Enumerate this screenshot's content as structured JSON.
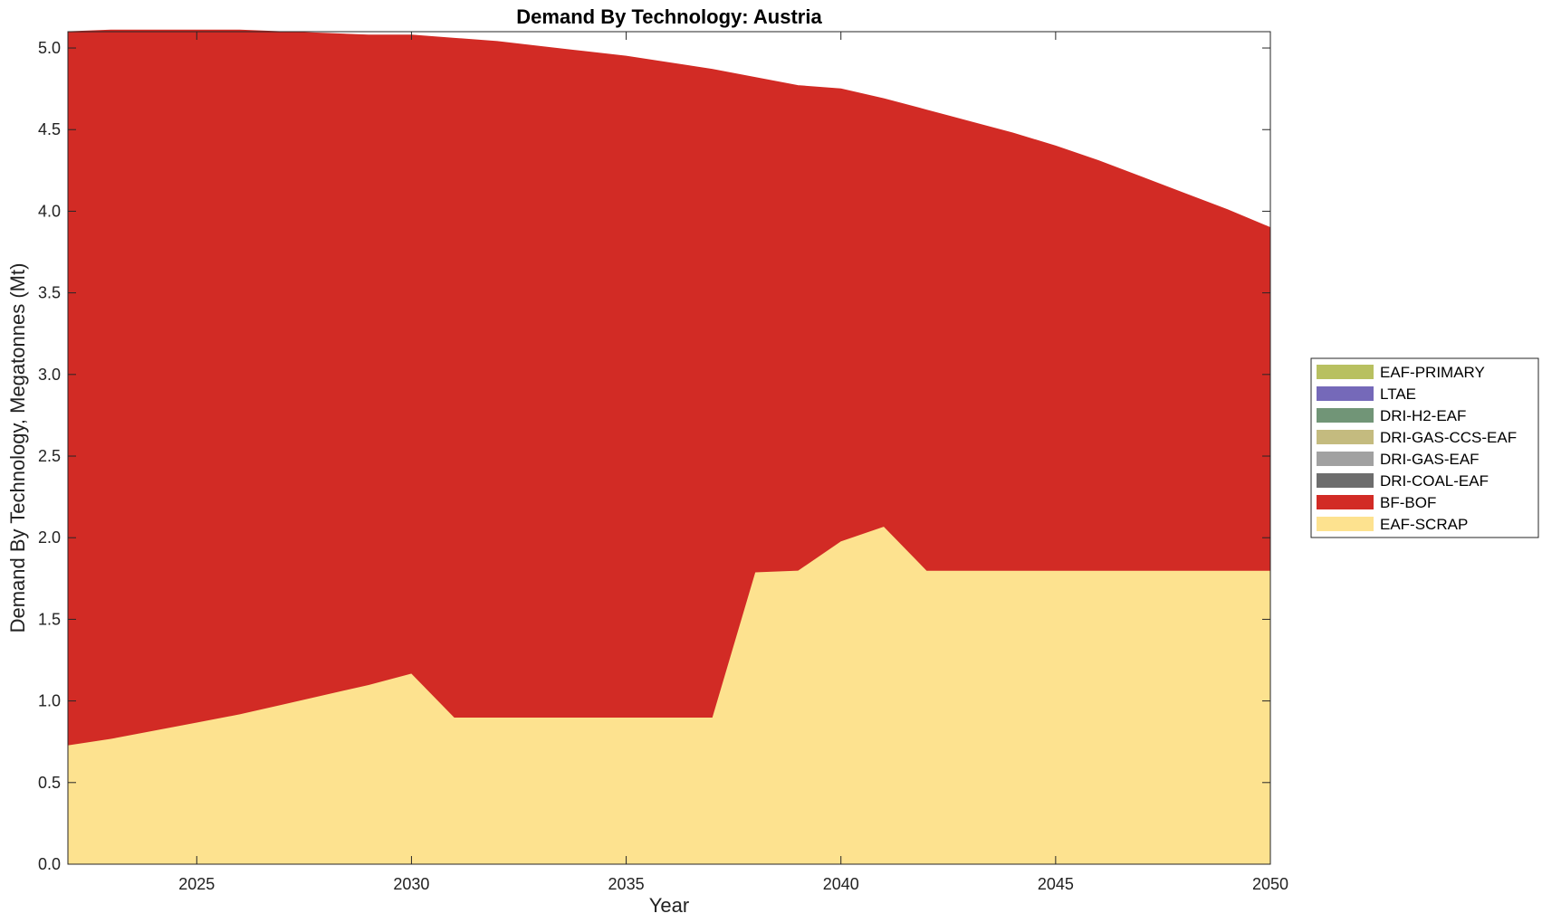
{
  "chart_data": {
    "type": "area",
    "stacked": true,
    "title": "Demand By Technology: Austria",
    "xlabel": "Year",
    "ylabel": "Demand By Technology, Megatonnes (Mt)",
    "xlim": [
      2022,
      2050
    ],
    "ylim": [
      0,
      5.1
    ],
    "xticks": [
      "2025",
      "2030",
      "2035",
      "2040",
      "2045",
      "2050"
    ],
    "yticks": [
      "0.0",
      "0.5",
      "1.0",
      "1.5",
      "2.0",
      "2.5",
      "3.0",
      "3.5",
      "4.0",
      "4.5",
      "5.0"
    ],
    "grid": false,
    "legend_position": "right",
    "x": [
      2022,
      2023,
      2024,
      2025,
      2026,
      2027,
      2028,
      2029,
      2030,
      2031,
      2032,
      2033,
      2034,
      2035,
      2036,
      2037,
      2038,
      2039,
      2040,
      2041,
      2042,
      2043,
      2044,
      2045,
      2046,
      2047,
      2048,
      2049,
      2050
    ],
    "series": [
      {
        "name": "EAF-SCRAP",
        "color": "#fde28f",
        "values": [
          0.73,
          0.77,
          0.82,
          0.87,
          0.92,
          0.98,
          1.04,
          1.1,
          1.17,
          0.9,
          0.9,
          0.9,
          0.9,
          0.9,
          0.9,
          0.9,
          1.79,
          1.8,
          1.98,
          2.07,
          1.8,
          1.8,
          1.8,
          1.8,
          1.8,
          1.8,
          1.8,
          1.8,
          1.8
        ]
      },
      {
        "name": "BF-BOF",
        "color": "#d22b25",
        "values": [
          4.37,
          4.34,
          4.29,
          4.24,
          4.19,
          4.12,
          4.05,
          3.98,
          3.91,
          4.16,
          4.14,
          4.11,
          4.08,
          4.05,
          4.01,
          3.97,
          3.03,
          2.97,
          2.77,
          2.62,
          2.82,
          2.75,
          2.68,
          2.6,
          2.51,
          2.41,
          2.31,
          2.21,
          2.1
        ]
      },
      {
        "name": "DRI-COAL-EAF",
        "color": "#6d6d6d",
        "values": [
          0,
          0,
          0,
          0,
          0,
          0,
          0,
          0,
          0,
          0,
          0,
          0,
          0,
          0,
          0,
          0,
          0,
          0,
          0,
          0,
          0,
          0,
          0,
          0,
          0,
          0,
          0,
          0,
          0
        ]
      },
      {
        "name": "DRI-GAS-EAF",
        "color": "#a1a1a1",
        "values": [
          0,
          0,
          0,
          0,
          0,
          0,
          0,
          0,
          0,
          0,
          0,
          0,
          0,
          0,
          0,
          0,
          0,
          0,
          0,
          0,
          0,
          0,
          0,
          0,
          0,
          0,
          0,
          0,
          0
        ]
      },
      {
        "name": "DRI-GAS-CCS-EAF",
        "color": "#c4bb7f",
        "values": [
          0,
          0,
          0,
          0,
          0,
          0,
          0,
          0,
          0,
          0,
          0,
          0,
          0,
          0,
          0,
          0,
          0,
          0,
          0,
          0,
          0,
          0,
          0,
          0,
          0,
          0,
          0,
          0,
          0
        ]
      },
      {
        "name": "DRI-H2-EAF",
        "color": "#719577",
        "values": [
          0,
          0,
          0,
          0,
          0,
          0,
          0,
          0,
          0,
          0,
          0,
          0,
          0,
          0,
          0,
          0,
          0,
          0,
          0,
          0,
          0,
          0,
          0,
          0,
          0,
          0,
          0,
          0,
          0
        ]
      },
      {
        "name": "LTAE",
        "color": "#7569b9",
        "values": [
          0,
          0,
          0,
          0,
          0,
          0,
          0,
          0,
          0,
          0,
          0,
          0,
          0,
          0,
          0,
          0,
          0,
          0,
          0,
          0,
          0,
          0,
          0,
          0,
          0,
          0,
          0,
          0,
          0
        ]
      },
      {
        "name": "EAF-PRIMARY",
        "color": "#b8c060",
        "values": [
          0,
          0,
          0,
          0,
          0,
          0,
          0,
          0,
          0,
          0,
          0,
          0,
          0,
          0,
          0,
          0,
          0,
          0,
          0,
          0,
          0,
          0,
          0,
          0,
          0,
          0,
          0,
          0,
          0
        ]
      }
    ],
    "legend_order": [
      "EAF-PRIMARY",
      "LTAE",
      "DRI-H2-EAF",
      "DRI-GAS-CCS-EAF",
      "DRI-GAS-EAF",
      "DRI-COAL-EAF",
      "BF-BOF",
      "EAF-SCRAP"
    ]
  }
}
